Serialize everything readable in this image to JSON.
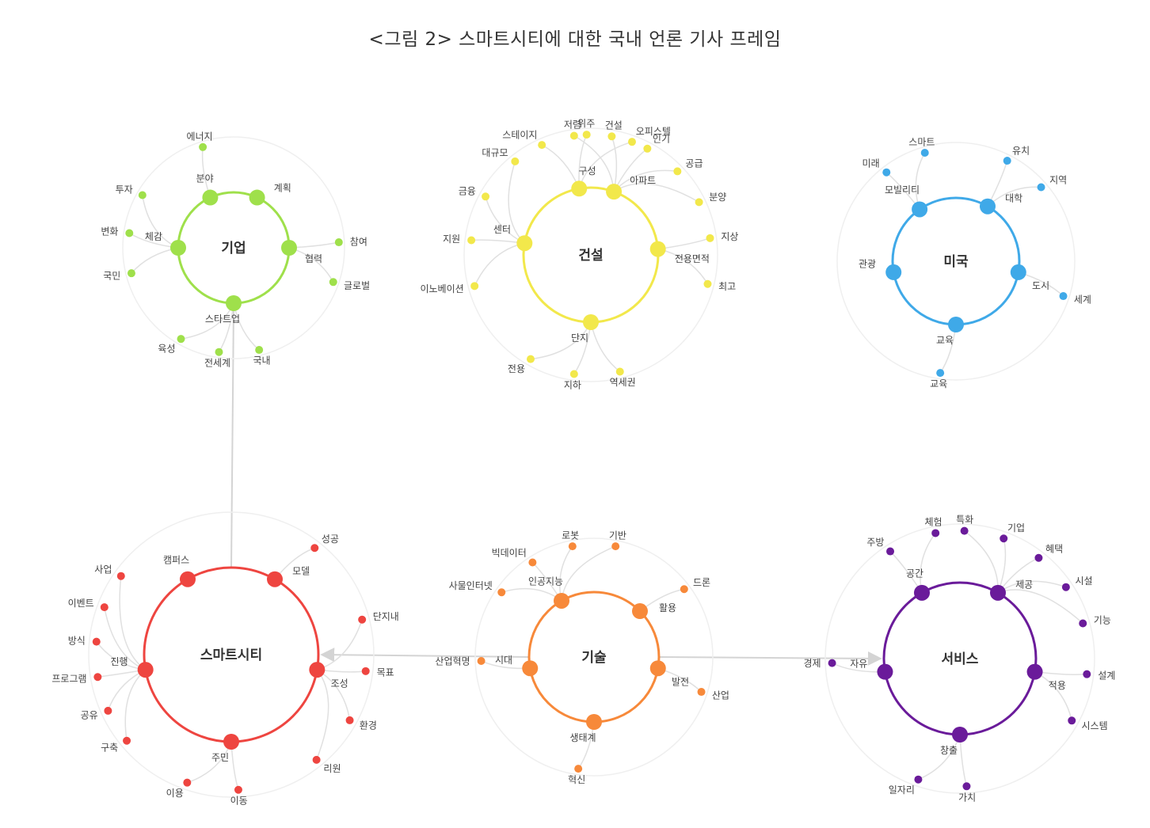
{
  "title": "<그림 2> 스마트시티에 대한 국내 언론 기사 프레임",
  "edge_color": "#d4d4d4",
  "clusters": [
    {
      "id": "corp",
      "label": "기업",
      "color": "#9fe04b",
      "hubs": [
        {
          "label": "분야",
          "leaves": [
            "에너지"
          ]
        },
        {
          "label": "계획",
          "leaves": []
        },
        {
          "label": "협력",
          "leaves": [
            "참여",
            "글로벌"
          ]
        },
        {
          "label": "스타트업",
          "leaves": [
            "국내",
            "전세계",
            "육성"
          ]
        },
        {
          "label": "체감",
          "leaves": [
            "국민",
            "변화",
            "투자"
          ]
        }
      ]
    },
    {
      "id": "const",
      "label": "건설",
      "color": "#f2e84b",
      "hubs": [
        {
          "label": "아파트",
          "leaves": [
            "저렴",
            "건설",
            "인기",
            "공급",
            "분양"
          ]
        },
        {
          "label": "전용면적",
          "leaves": [
            "지상",
            "최고"
          ]
        },
        {
          "label": "단지",
          "leaves": [
            "역세권",
            "지하",
            "전용"
          ]
        },
        {
          "label": "센터",
          "leaves": [
            "이노베이션",
            "지원",
            "금융",
            "대규모"
          ]
        },
        {
          "label": "구성",
          "leaves": [
            "스테이지",
            "위주",
            "오피스텔"
          ]
        }
      ]
    },
    {
      "id": "usa",
      "label": "미국",
      "color": "#3fa9e8",
      "hubs": [
        {
          "label": "대학",
          "leaves": [
            "유치",
            "지역"
          ]
        },
        {
          "label": "도시",
          "leaves": [
            "세계"
          ]
        },
        {
          "label": "교육",
          "leaves": [
            "교육"
          ]
        },
        {
          "label": "관광",
          "leaves": []
        },
        {
          "label": "모빌리티",
          "leaves": [
            "미래",
            "스마트"
          ]
        }
      ]
    },
    {
      "id": "smart",
      "label": "스마트시티",
      "color": "#ee4540",
      "hubs": [
        {
          "label": "모델",
          "leaves": [
            "성공"
          ]
        },
        {
          "label": "조성",
          "leaves": [
            "단지내",
            "목표",
            "환경",
            "리원"
          ]
        },
        {
          "label": "주민",
          "leaves": [
            "이동",
            "이용"
          ]
        },
        {
          "label": "진행",
          "leaves": [
            "구축",
            "공유",
            "프로그램",
            "방식",
            "이벤트",
            "사업"
          ]
        },
        {
          "label": "캠퍼스",
          "leaves": []
        }
      ]
    },
    {
      "id": "tech",
      "label": "기술",
      "color": "#f7893a",
      "hubs": [
        {
          "label": "활용",
          "leaves": [
            "드론"
          ]
        },
        {
          "label": "발전",
          "leaves": [
            "산업"
          ]
        },
        {
          "label": "생태계",
          "leaves": [
            "혁신"
          ]
        },
        {
          "label": "시대",
          "leaves": [
            "산업혁명"
          ]
        },
        {
          "label": "인공지능",
          "leaves": [
            "사물인터넷",
            "빅데이터",
            "로봇",
            "기반"
          ]
        }
      ]
    },
    {
      "id": "service",
      "label": "서비스",
      "color": "#6a1b9a",
      "hubs": [
        {
          "label": "제공",
          "leaves": [
            "특화",
            "기업",
            "혜택",
            "시설",
            "기능"
          ]
        },
        {
          "label": "적용",
          "leaves": [
            "설계",
            "시스템"
          ]
        },
        {
          "label": "창출",
          "leaves": [
            "가치",
            "일자리"
          ]
        },
        {
          "label": "자유",
          "leaves": [
            "경제"
          ]
        },
        {
          "label": "공간",
          "leaves": [
            "주방",
            "체험"
          ]
        }
      ]
    }
  ]
}
